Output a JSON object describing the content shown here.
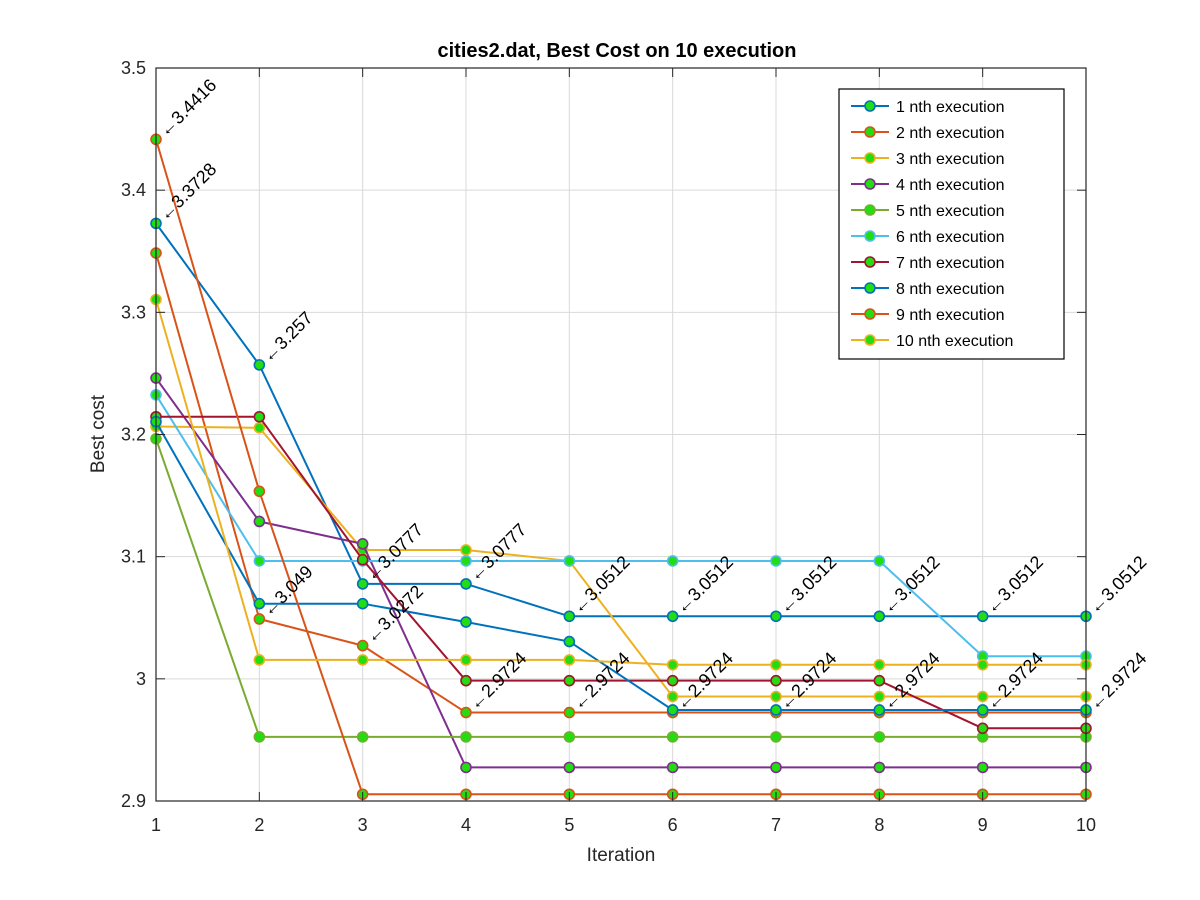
{
  "chart_data": {
    "type": "line",
    "title": "cities2.dat, Best Cost on 10 execution",
    "xlabel": "Iteration",
    "ylabel": "Best cost",
    "xlim": [
      1,
      10
    ],
    "ylim": [
      2.9,
      3.5
    ],
    "xticks": [
      "1",
      "2",
      "3",
      "4",
      "5",
      "6",
      "7",
      "8",
      "9",
      "10"
    ],
    "yticks": [
      "2.9",
      "3",
      "3.1",
      "3.2",
      "3.3",
      "3.4",
      "3.5"
    ],
    "grid": true,
    "legend_position": "top-right",
    "marker_face_color": "#22dd11",
    "x": [
      1,
      2,
      3,
      4,
      5,
      6,
      7,
      8,
      9,
      10
    ],
    "series": [
      {
        "name": "1 nth execution",
        "color": "#0072BD",
        "values": [
          3.3728,
          3.257,
          3.0777,
          3.0777,
          3.0512,
          3.0512,
          3.0512,
          3.0512,
          3.0512,
          3.0512
        ]
      },
      {
        "name": "2 nth execution",
        "color": "#D95319",
        "values": [
          3.3485,
          3.049,
          3.0272,
          2.9724,
          2.9724,
          2.9724,
          2.9724,
          2.9724,
          2.9724,
          2.9724
        ]
      },
      {
        "name": "3 nth execution",
        "color": "#EDB120",
        "values": [
          3.2065,
          3.2055,
          3.1055,
          3.1055,
          3.0965,
          2.9855,
          2.9855,
          2.9855,
          2.9855,
          2.9855
        ]
      },
      {
        "name": "4 nth execution",
        "color": "#7E2F8E",
        "values": [
          3.2462,
          3.1288,
          3.1105,
          2.9275,
          2.9275,
          2.9275,
          2.9275,
          2.9275,
          2.9275,
          2.9275
        ]
      },
      {
        "name": "5 nth execution",
        "color": "#77AC30",
        "values": [
          3.1965,
          2.9525,
          2.9525,
          2.9525,
          2.9525,
          2.9525,
          2.9525,
          2.9525,
          2.9525,
          2.9525
        ]
      },
      {
        "name": "6 nth execution",
        "color": "#4DBEEE",
        "values": [
          3.2325,
          3.0965,
          3.0965,
          3.0965,
          3.0965,
          3.0965,
          3.0965,
          3.0965,
          3.0185,
          3.0185
        ]
      },
      {
        "name": "7 nth execution",
        "color": "#A2142F",
        "values": [
          3.2145,
          3.2145,
          3.0975,
          2.9985,
          2.9985,
          2.9985,
          2.9985,
          2.9985,
          2.9595,
          2.9595
        ]
      },
      {
        "name": "8 nth execution",
        "color": "#0072BD",
        "values": [
          3.2105,
          3.0615,
          3.0615,
          3.0465,
          3.0305,
          2.9745,
          2.9745,
          2.9745,
          2.9745,
          2.9745
        ]
      },
      {
        "name": "9 nth execution",
        "color": "#D95319",
        "values": [
          3.4416,
          3.1535,
          2.9055,
          2.9055,
          2.9055,
          2.9055,
          2.9055,
          2.9055,
          2.9055,
          2.9055
        ]
      },
      {
        "name": "10 nth execution",
        "color": "#EDB120",
        "values": [
          3.3105,
          3.0155,
          3.0155,
          3.0155,
          3.0155,
          3.0115,
          3.0115,
          3.0115,
          3.0115,
          3.0115
        ]
      }
    ],
    "annotations": [
      {
        "x": 1,
        "y": 3.4416,
        "text": "3.4416"
      },
      {
        "x": 1,
        "y": 3.3728,
        "text": "3.3728"
      },
      {
        "x": 2,
        "y": 3.257,
        "text": "3.257"
      },
      {
        "x": 2,
        "y": 3.049,
        "text": "3.049"
      },
      {
        "x": 3,
        "y": 3.0777,
        "text": "3.0777"
      },
      {
        "x": 3,
        "y": 3.0272,
        "text": "3.0272"
      },
      {
        "x": 4,
        "y": 3.0777,
        "text": "3.0777"
      },
      {
        "x": 4,
        "y": 2.9724,
        "text": "2.9724"
      },
      {
        "x": 5,
        "y": 3.0512,
        "text": "3.0512"
      },
      {
        "x": 5,
        "y": 2.9724,
        "text": "2.9724"
      },
      {
        "x": 6,
        "y": 3.0512,
        "text": "3.0512"
      },
      {
        "x": 6,
        "y": 2.9724,
        "text": "2.9724"
      },
      {
        "x": 7,
        "y": 3.0512,
        "text": "3.0512"
      },
      {
        "x": 7,
        "y": 2.9724,
        "text": "2.9724"
      },
      {
        "x": 8,
        "y": 3.0512,
        "text": "3.0512"
      },
      {
        "x": 8,
        "y": 2.9724,
        "text": "2.9724"
      },
      {
        "x": 9,
        "y": 3.0512,
        "text": "3.0512"
      },
      {
        "x": 9,
        "y": 2.9724,
        "text": "2.9724"
      },
      {
        "x": 10,
        "y": 3.0512,
        "text": "3.0512"
      },
      {
        "x": 10,
        "y": 2.9724,
        "text": "2.9724"
      }
    ]
  }
}
